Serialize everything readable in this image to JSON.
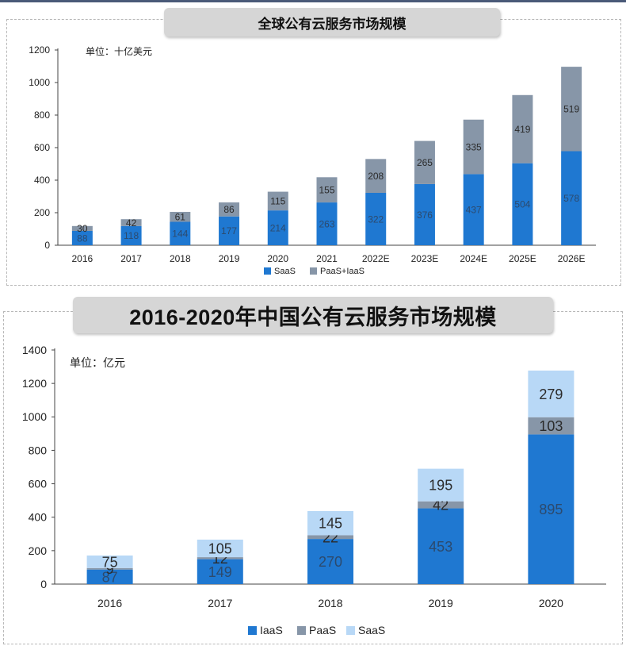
{
  "chart_data": [
    {
      "type": "bar",
      "stacked": true,
      "title": "全球公有云服务市场规模",
      "unit_label": "单位：十亿美元",
      "categories": [
        "2016",
        "2017",
        "2018",
        "2019",
        "2020",
        "2021",
        "2022E",
        "2023E",
        "2024E",
        "2025E",
        "2026E"
      ],
      "series": [
        {
          "name": "SaaS",
          "color": "#1f78d1",
          "values": [
            88,
            118,
            144,
            177,
            214,
            263,
            322,
            376,
            437,
            504,
            578
          ]
        },
        {
          "name": "PaaS+IaaS",
          "color": "#8796a8",
          "values": [
            30,
            42,
            61,
            86,
            115,
            155,
            208,
            265,
            335,
            419,
            519
          ]
        }
      ],
      "ylim": [
        0,
        1200
      ],
      "yticks": [
        0,
        200,
        400,
        600,
        800,
        1000,
        1200
      ],
      "grid": false,
      "legend": "bottom"
    },
    {
      "type": "bar",
      "stacked": true,
      "title": "2016-2020年中国公有云服务市场规模",
      "unit_label": "单位：亿元",
      "categories": [
        "2016",
        "2017",
        "2018",
        "2019",
        "2020"
      ],
      "series": [
        {
          "name": "IaaS",
          "color": "#1f78d1",
          "values": [
            87,
            149,
            270,
            453,
            895
          ]
        },
        {
          "name": "PaaS",
          "color": "#8796a8",
          "values": [
            9,
            12,
            22,
            42,
            103
          ]
        },
        {
          "name": "SaaS",
          "color": "#b8d8f6",
          "values": [
            75,
            105,
            145,
            195,
            279
          ]
        }
      ],
      "ylim": [
        0,
        1400
      ],
      "yticks": [
        0,
        200,
        400,
        600,
        800,
        1000,
        1200,
        1400
      ],
      "grid": false,
      "legend": "bottom"
    }
  ]
}
